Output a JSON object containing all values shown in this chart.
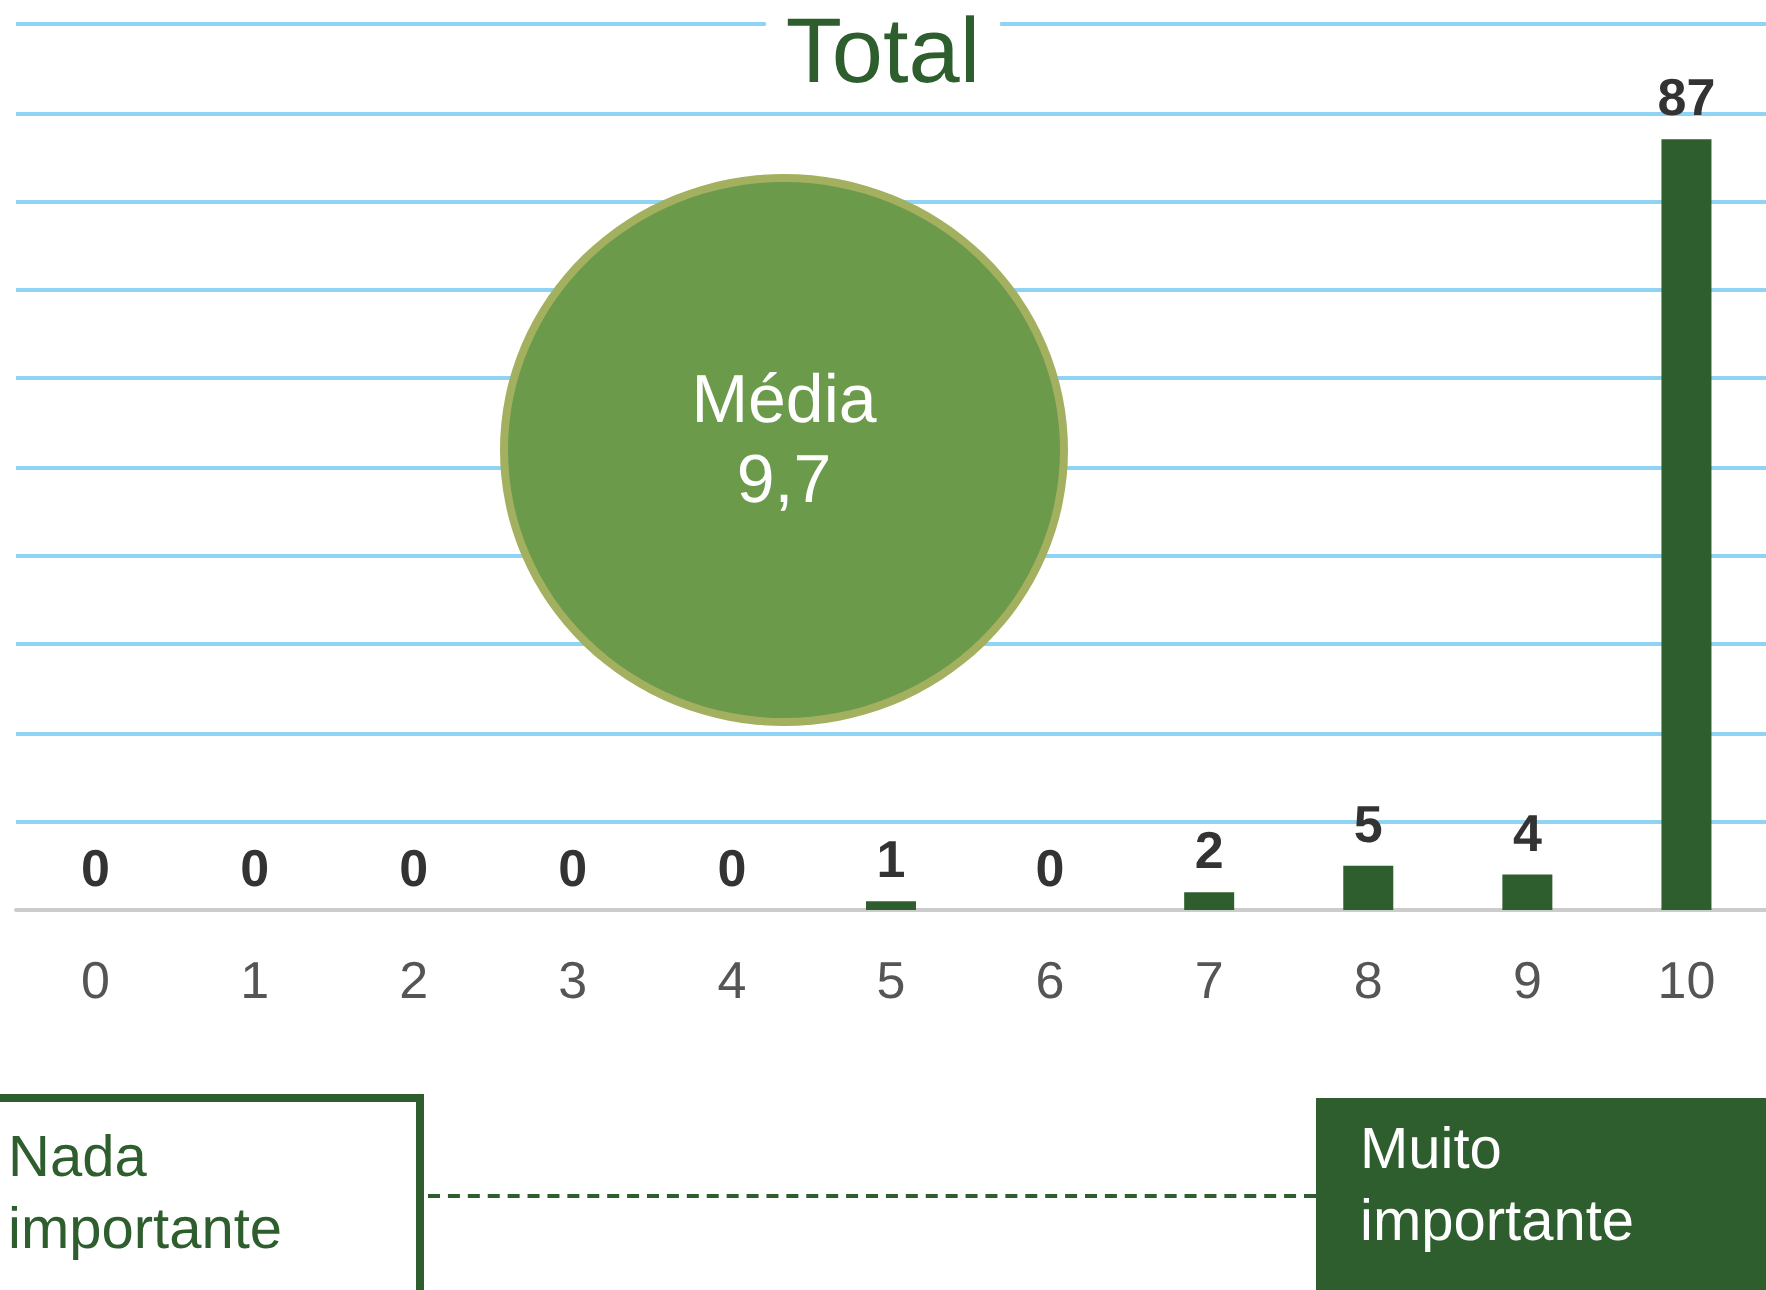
{
  "chart_data": {
    "type": "bar",
    "title": "Total",
    "categories": [
      "0",
      "1",
      "2",
      "3",
      "4",
      "5",
      "6",
      "7",
      "8",
      "9",
      "10"
    ],
    "values": [
      0,
      0,
      0,
      0,
      0,
      1,
      0,
      2,
      5,
      4,
      87
    ],
    "color": "#2e5e2e",
    "ylim": [
      0,
      100
    ],
    "yticks": [
      0,
      10,
      20,
      30,
      40,
      50,
      60,
      70,
      80,
      90,
      100
    ],
    "grid": "y",
    "tick_labels": "x",
    "data_labels": true,
    "annotations": [
      "Média 9,7",
      "Nada importante",
      "Muito importante"
    ]
  }
}
